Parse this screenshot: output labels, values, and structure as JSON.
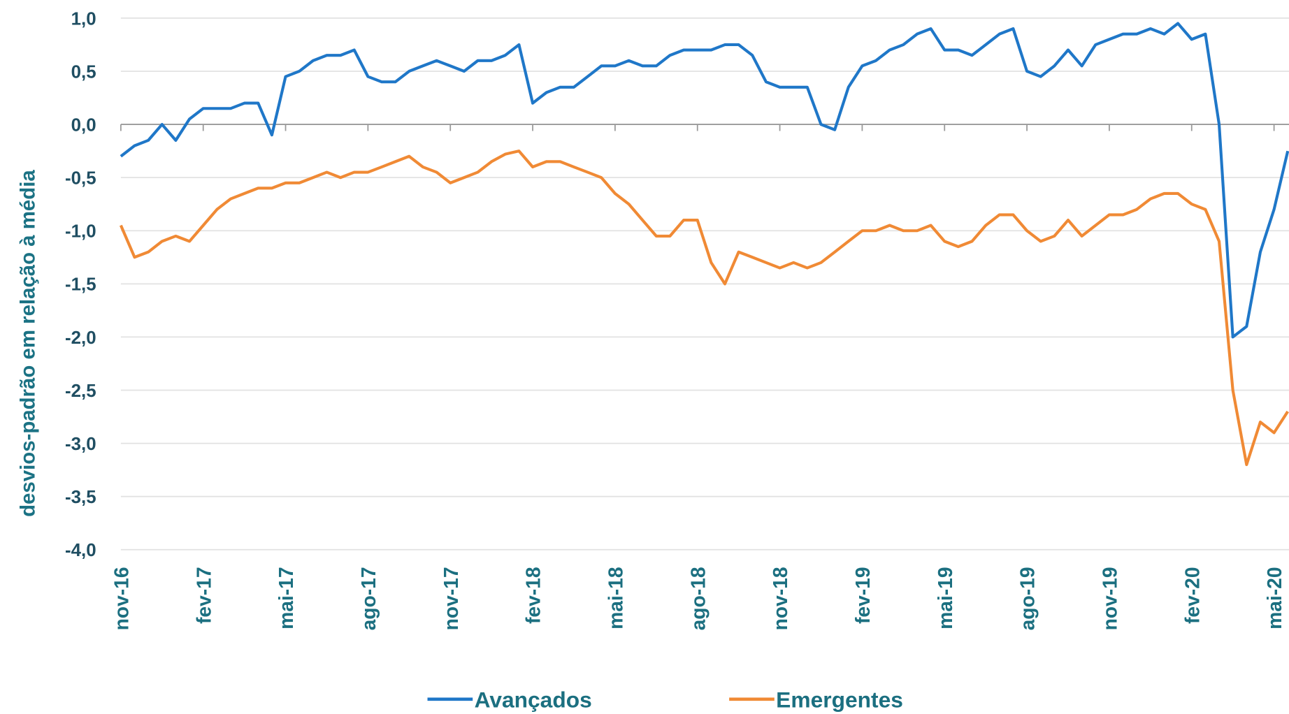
{
  "chart_data": {
    "type": "line",
    "ylabel": "desvios-padrão em relação à média",
    "categories": [
      "nov-16",
      null,
      null,
      null,
      null,
      null,
      "fev-17",
      null,
      null,
      null,
      null,
      null,
      "mai-17",
      null,
      null,
      null,
      null,
      null,
      "ago-17",
      null,
      null,
      null,
      null,
      null,
      "nov-17",
      null,
      null,
      null,
      null,
      null,
      "fev-18",
      null,
      null,
      null,
      null,
      null,
      "mai-18",
      null,
      null,
      null,
      null,
      null,
      "ago-18",
      null,
      null,
      null,
      null,
      null,
      "nov-18",
      null,
      null,
      null,
      null,
      null,
      "fev-19",
      null,
      null,
      null,
      null,
      null,
      "mai-19",
      null,
      null,
      null,
      null,
      null,
      "ago-19",
      null,
      null,
      null,
      null,
      null,
      "nov-19",
      null,
      null,
      null,
      null,
      null,
      "fev-20",
      null,
      null,
      null,
      null,
      null,
      "mai-20",
      null
    ],
    "series": [
      {
        "name": "Avançados",
        "color": "#1f77c8",
        "values": [
          -0.3,
          -0.2,
          -0.15,
          0.0,
          -0.15,
          0.05,
          0.15,
          0.15,
          0.15,
          0.2,
          0.2,
          -0.1,
          0.45,
          0.5,
          0.6,
          0.65,
          0.65,
          0.7,
          0.45,
          0.4,
          0.4,
          0.5,
          0.55,
          0.6,
          0.55,
          0.5,
          0.6,
          0.6,
          0.65,
          0.75,
          0.2,
          0.3,
          0.35,
          0.35,
          0.45,
          0.55,
          0.55,
          0.6,
          0.55,
          0.55,
          0.65,
          0.7,
          0.7,
          0.7,
          0.75,
          0.75,
          0.65,
          0.4,
          0.35,
          0.35,
          0.35,
          0.0,
          -0.05,
          0.35,
          0.55,
          0.6,
          0.7,
          0.75,
          0.85,
          0.9,
          0.7,
          0.7,
          0.65,
          0.75,
          0.85,
          0.9,
          0.5,
          0.45,
          0.55,
          0.7,
          0.55,
          0.75,
          0.8,
          0.85,
          0.85,
          0.9,
          0.85,
          0.95,
          0.8,
          0.85,
          0.0,
          -2.0,
          -1.9,
          -1.2,
          -0.8,
          -0.25
        ]
      },
      {
        "name": "Emergentes",
        "color": "#f08a35",
        "values": [
          -0.95,
          -1.25,
          -1.2,
          -1.1,
          -1.05,
          -1.1,
          -0.95,
          -0.8,
          -0.7,
          -0.65,
          -0.6,
          -0.6,
          -0.55,
          -0.55,
          -0.5,
          -0.45,
          -0.5,
          -0.45,
          -0.45,
          -0.4,
          -0.35,
          -0.3,
          -0.4,
          -0.45,
          -0.55,
          -0.5,
          -0.45,
          -0.35,
          -0.28,
          -0.25,
          -0.4,
          -0.35,
          -0.35,
          -0.4,
          -0.45,
          -0.5,
          -0.65,
          -0.75,
          -0.9,
          -1.05,
          -1.05,
          -0.9,
          -0.9,
          -1.3,
          -1.5,
          -1.2,
          -1.25,
          -1.3,
          -1.35,
          -1.3,
          -1.35,
          -1.3,
          -1.2,
          -1.1,
          -1.0,
          -1.0,
          -0.95,
          -1.0,
          -1.0,
          -0.95,
          -1.1,
          -1.15,
          -1.1,
          -0.95,
          -0.85,
          -0.85,
          -1.0,
          -1.1,
          -1.05,
          -0.9,
          -1.05,
          -0.95,
          -0.85,
          -0.85,
          -0.8,
          -0.7,
          -0.65,
          -0.65,
          -0.75,
          -0.8,
          -1.1,
          -2.5,
          -3.2,
          -2.8,
          -2.9,
          -2.7
        ]
      }
    ],
    "ylim": [
      -4.0,
      1.0
    ],
    "yticks": [
      {
        "value": 1.0,
        "label": "1,0"
      },
      {
        "value": 0.5,
        "label": "0,5"
      },
      {
        "value": 0.0,
        "label": "0,0"
      },
      {
        "value": -0.5,
        "label": "-0,5"
      },
      {
        "value": -1.0,
        "label": "-1,0"
      },
      {
        "value": -1.5,
        "label": "-1,5"
      },
      {
        "value": -2.0,
        "label": "-2,0"
      },
      {
        "value": -2.5,
        "label": "-2,5"
      },
      {
        "value": -3.0,
        "label": "-3,0"
      },
      {
        "value": -3.5,
        "label": "-3,5"
      },
      {
        "value": -4.0,
        "label": "-4,0"
      }
    ],
    "grid": true,
    "legend": "bottom"
  }
}
